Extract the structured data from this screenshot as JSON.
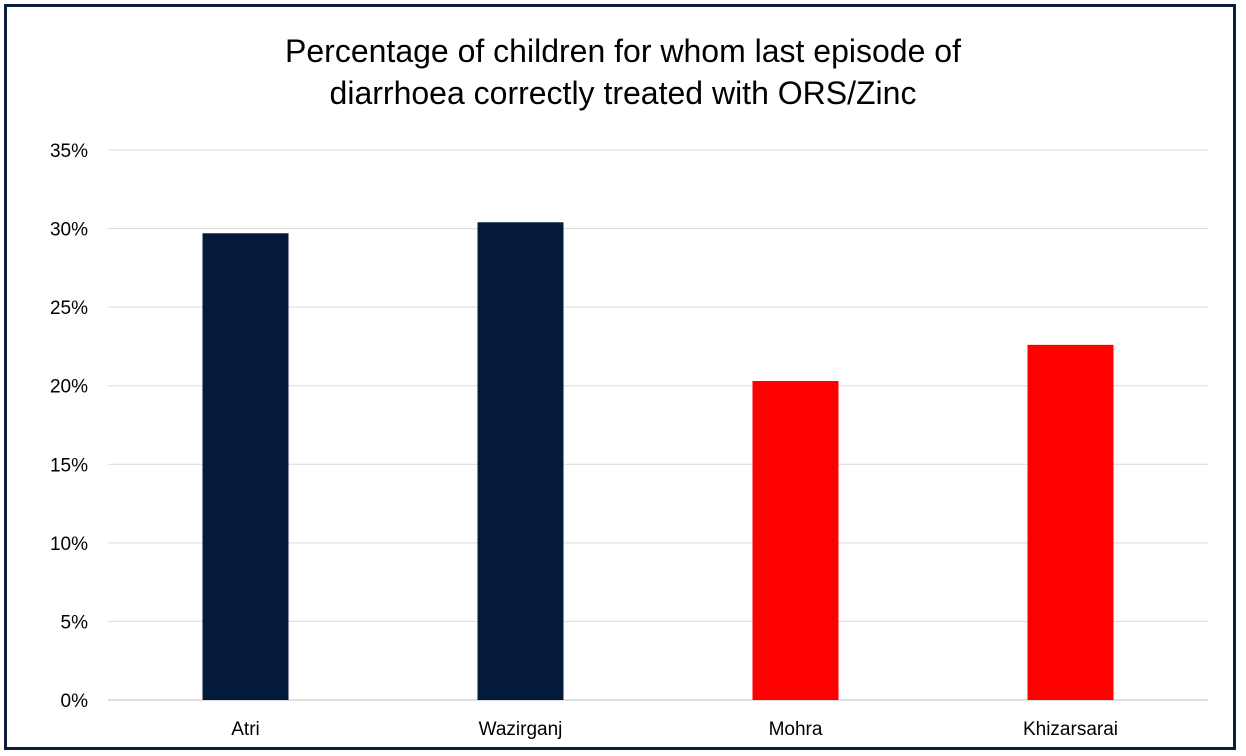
{
  "chart_data": {
    "type": "bar",
    "title_lines": [
      "Percentage of children for whom last episode of",
      "diarrhoea correctly treated with ORS/Zinc"
    ],
    "categories": [
      "Atri",
      "Wazirganj",
      "Mohra",
      "Khizarsarai"
    ],
    "values": [
      29.7,
      30.4,
      20.3,
      22.6
    ],
    "bar_colors": [
      "#041a3a",
      "#041a3a",
      "#ff0000",
      "#ff0000"
    ],
    "ylim": [
      0,
      35
    ],
    "yticks": [
      "0%",
      "5%",
      "10%",
      "15%",
      "20%",
      "25%",
      "30%",
      "35%"
    ],
    "grid": true,
    "legend": false
  },
  "colors": {
    "frame": "#0b1d3a",
    "grid": "#d9d9d9",
    "axis": "#bfbfbf"
  }
}
